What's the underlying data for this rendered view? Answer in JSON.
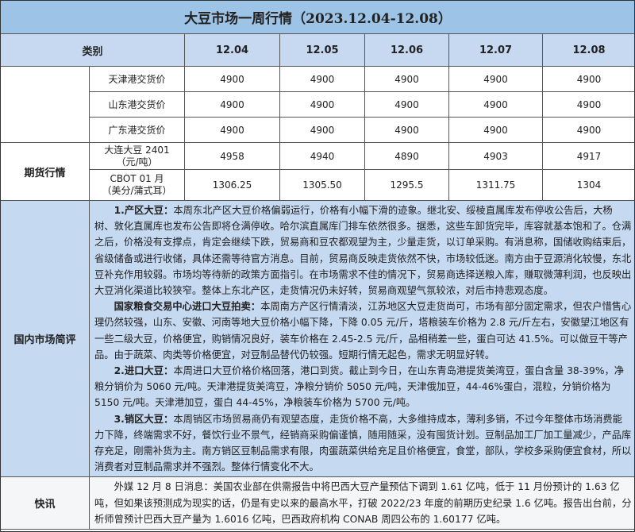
{
  "title": "大豆市场一周行情（2023.12.04-12.08）",
  "header": {
    "category": "类别",
    "dates": [
      "12.04",
      "12.05",
      "12.06",
      "12.07",
      "12.08"
    ]
  },
  "spot_rows": [
    {
      "name": "天津港交货价",
      "values": [
        "4900",
        "4900",
        "4900",
        "4900",
        "4900"
      ]
    },
    {
      "name": "山东港交货价",
      "values": [
        "4900",
        "4900",
        "4900",
        "4900",
        "4900"
      ]
    },
    {
      "name": "广东港交货价",
      "values": [
        "4900",
        "4900",
        "4900",
        "4900",
        "4900"
      ]
    }
  ],
  "futures": {
    "label": "期货行情",
    "rows": [
      {
        "name": "大连大豆 2401",
        "unit": "（元/吨）",
        "values": [
          "4958",
          "4940",
          "4890",
          "4903",
          "4917"
        ]
      },
      {
        "name": "CBOT 01 月",
        "unit": "（美分/蒲式耳）",
        "values": [
          "1306.25",
          "1305.50",
          "1295.5",
          "1311.75",
          "1304"
        ]
      }
    ]
  },
  "commentary": {
    "label": "国内市场简评",
    "paragraphs": [
      {
        "head": "1.产区大豆：",
        "text": "本周东北产区大豆价格偏弱运行，价格有小幅下滑的迹象。继北安、绥棱直属库发布停收公告后，大杨树、敦化直属库也发布公告即将仓满停收。哈尔滨直属库门排车依然很多。据悉，这些车卸货完毕，库容就基本饱和了。仓满之后，价格没有支撑点，肯定会继续下跌，贸易商和豆农都观望为主，少量走货，以订单采购。有消息称，国储收购结束后，省级储备或进行收储，具体还需等待官方消息。目前，贸易商反映走货依然不快，市场较低迷。南方由于豆源消化较慢，东北豆补充作用较弱。市场均等待新的政策方面指引。在市场需求不佳的情况下，贸易商选择送粮入库，赚取微薄利润，也反映出大豆消化渠道比较狭窄。整体上东北产区，走货情况仍未好转，贸易商观望气氛较浓，对后市持悲观态度。"
      },
      {
        "head": "国家粮食交易中心进口大豆拍卖：",
        "text": "本周南方产区行情清淡，江苏地区大豆走货尚可，市场有部分固定需求，但农户惜售心理仍然较强，山东、安徽、河南等地大豆价格小幅下降，下降 0.05 元/斤，塔粮装车价格为 2.8 元/斤左右，安徽望江地区有一些二级大豆，价格便宜，购销情况良好，装车价格在 2.45-2.5 元/斤，品相稍差一些，蛋白可达 41.5%。可以做豆干等产品。由于蔬菜、肉类等价格便宜，对豆制品替代仍较强。短期行情无起色，需求无明显好转。"
      },
      {
        "head": "2.进口大豆：",
        "text": "本周进口大豆价格价格回落，港口到货。截止到今日，在山东青岛港提货美湾豆，蛋白含量 38-39%，净粮分销价为 5060 元/吨。天津港提货美湾豆，净粮分销价 5050 元/吨，天津俄加豆，44-46%蛋白，混粒，分销价格为 5150 元/吨。天津港加豆，蛋白 44-45%，净粮装车价格为 5700 元/吨。"
      },
      {
        "head": "3.销区大豆：",
        "text": "本周销区市场贸易商仍有观望态度，走货价格不高，大多维持成本，薄利多销，不过今年整体市场消费能力下降，终端需求不好，餐饮行业不景气，经销商采购偏谨慎，随用随采，没有囤货计划。豆制品加工厂加工量减少，产品库存充足，刚需补货为主。南方销区豆制品需求有限，肉蛋蔬菜供给充足且价格便宜，食堂，部队，学校多采购便宜食材，所以消费者对豆制品需求并不强烈。整体行情变化不大。"
      }
    ]
  },
  "news": {
    "label": "快讯",
    "text": "外媒 12 月 8 日消息：美国农业部在供需报告中将巴西大豆产量预估下调到 1.61 亿吨，低于 11 月份预计的 1.63 亿吨，但如果该预测成为现实的话，仍是有史以来的最高水平，打破 2022/23 年度的前期历史纪录 1.6 亿吨。报告出台前，分析师曾预计巴西大豆产量为 1.6016 亿吨，巴西政府机构 CONAB 周四公布的 1.60177 亿吨。"
  }
}
